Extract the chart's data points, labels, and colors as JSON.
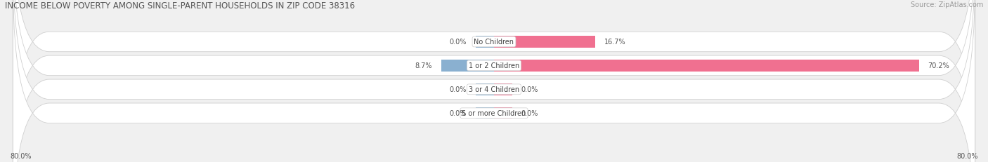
{
  "title": "INCOME BELOW POVERTY AMONG SINGLE-PARENT HOUSEHOLDS IN ZIP CODE 38316",
  "source": "Source: ZipAtlas.com",
  "categories": [
    "No Children",
    "1 or 2 Children",
    "3 or 4 Children",
    "5 or more Children"
  ],
  "single_father": [
    0.0,
    8.7,
    0.0,
    0.0
  ],
  "single_mother": [
    16.7,
    70.2,
    0.0,
    0.0
  ],
  "father_color": "#8ab0d0",
  "mother_color": "#f07090",
  "background_color": "#f0f0f0",
  "pill_color": "#ffffff",
  "pill_edge_color": "#d0d0d0",
  "xlim_left": -80.0,
  "xlim_right": 80.0,
  "x_left_label": "80.0%",
  "x_right_label": "80.0%",
  "title_fontsize": 8.5,
  "source_fontsize": 7,
  "value_fontsize": 7,
  "category_fontsize": 7,
  "legend_fontsize": 7.5,
  "bar_height": 0.62,
  "min_bar_show": 3.0,
  "cat_label_color": "#444444",
  "value_label_color": "#555555"
}
